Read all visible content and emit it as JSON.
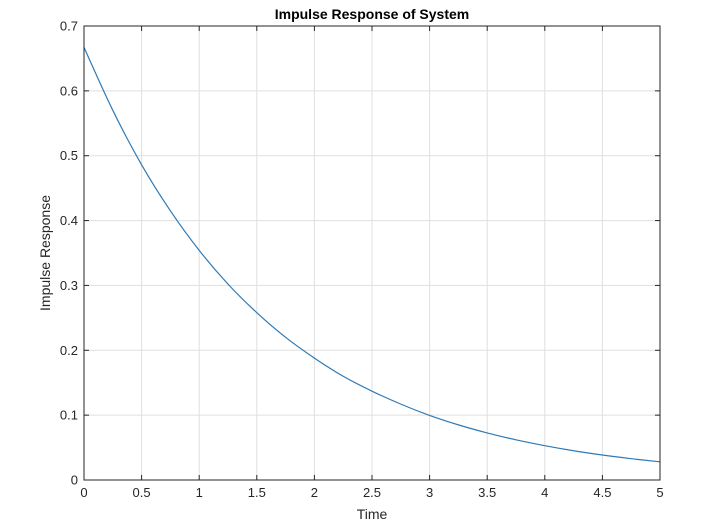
{
  "chart_data": {
    "type": "line",
    "title": "Impulse Response of System",
    "xlabel": "Time",
    "ylabel": "Impulse Response",
    "xlim": [
      0,
      5
    ],
    "ylim": [
      0,
      0.7
    ],
    "x_ticks": [
      0,
      0.5,
      1,
      1.5,
      2,
      2.5,
      3,
      3.5,
      4,
      4.5,
      5
    ],
    "x_tick_labels": [
      "0",
      "0.5",
      "1",
      "1.5",
      "2",
      "2.5",
      "3",
      "3.5",
      "4",
      "4.5",
      "5"
    ],
    "y_ticks": [
      0,
      0.1,
      0.2,
      0.3,
      0.4,
      0.5,
      0.6,
      0.7
    ],
    "y_tick_labels": [
      "0",
      "0.1",
      "0.2",
      "0.3",
      "0.4",
      "0.5",
      "0.6",
      "0.7"
    ],
    "grid": true,
    "series": [
      {
        "color": "#2f7ab6",
        "x": [
          0,
          0.25,
          0.5,
          0.75,
          1,
          1.25,
          1.5,
          1.75,
          2,
          2.25,
          2.5,
          2.75,
          3,
          3.25,
          3.5,
          3.75,
          4,
          4.25,
          4.5,
          4.75,
          5
        ],
        "y": [
          0.667,
          0.57,
          0.486,
          0.415,
          0.354,
          0.302,
          0.258,
          0.22,
          0.188,
          0.16,
          0.137,
          0.117,
          0.0996,
          0.085,
          0.0726,
          0.0619,
          0.0529,
          0.0451,
          0.0385,
          0.0329,
          0.028
        ]
      }
    ]
  }
}
